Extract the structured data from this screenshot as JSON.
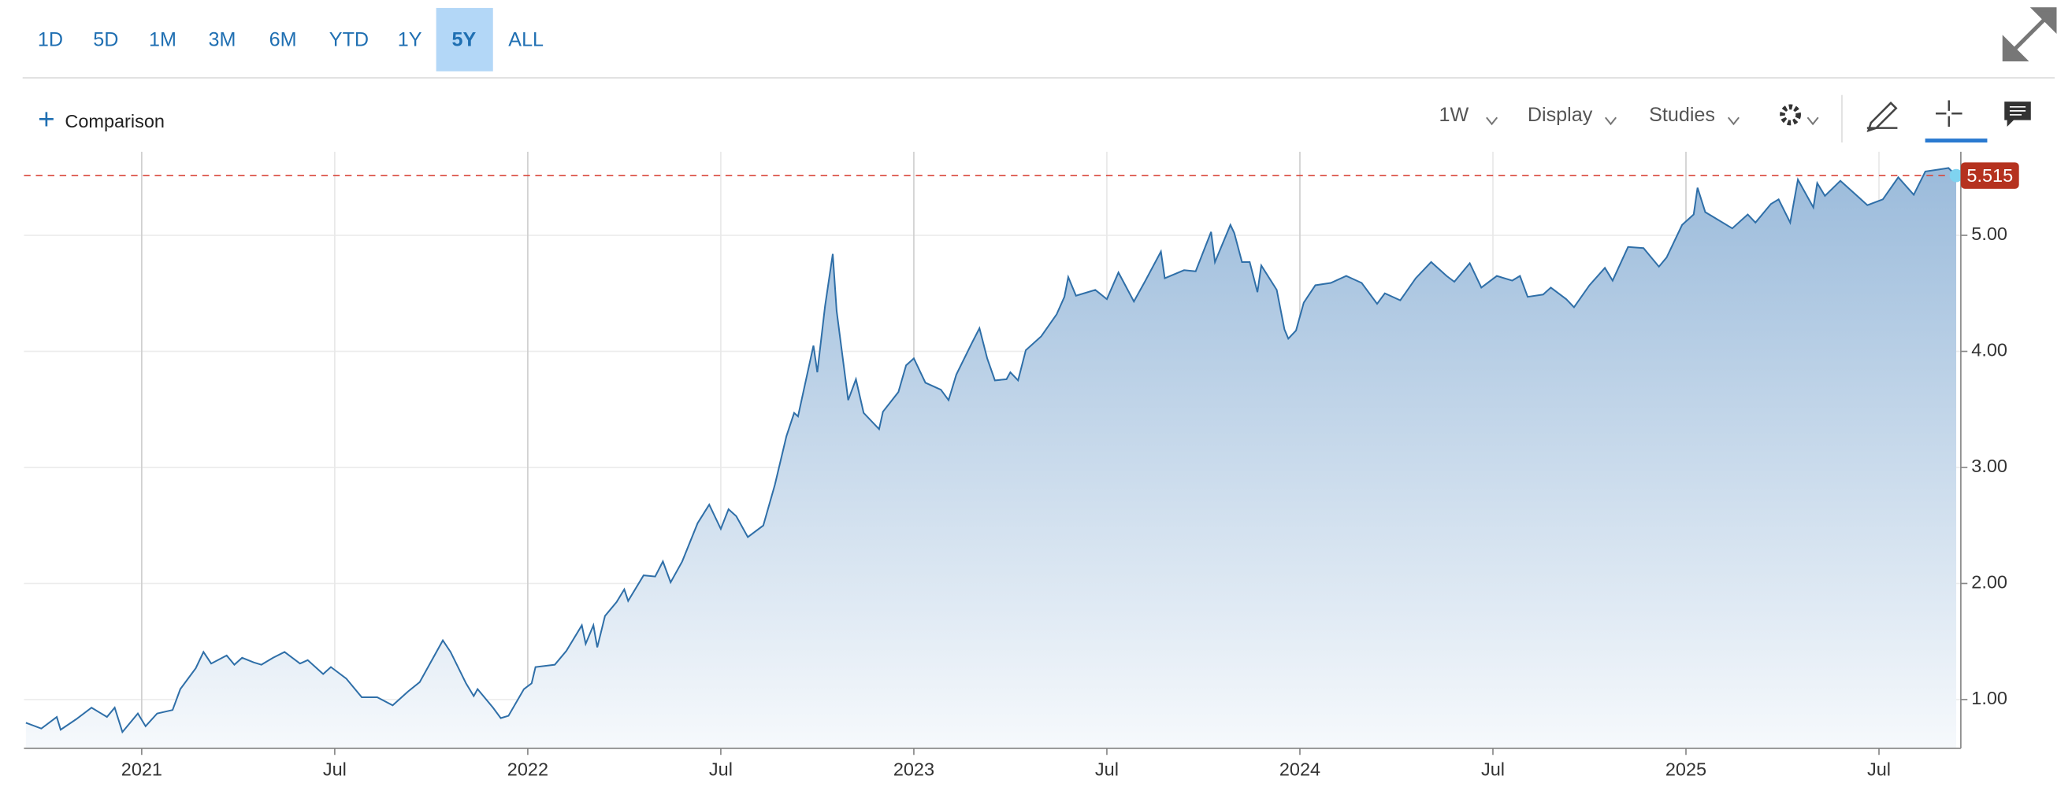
{
  "toolbar": {
    "ranges": [
      "1D",
      "5D",
      "1M",
      "3M",
      "6M",
      "YTD",
      "1Y",
      "5Y",
      "ALL"
    ],
    "selected_index": 7,
    "comparison": "Comparison",
    "interval": "1W",
    "display": "Display",
    "studies": "Studies"
  },
  "chart_data": {
    "type": "area",
    "grid": true,
    "x": [
      2020.7,
      2020.74,
      2020.78,
      2020.79,
      2020.83,
      2020.87,
      2020.91,
      2020.93,
      2020.95,
      2020.99,
      2021.01,
      2021.04,
      2021.08,
      2021.1,
      2021.14,
      2021.16,
      2021.18,
      2021.22,
      2021.24,
      2021.26,
      2021.29,
      2021.31,
      2021.34,
      2021.37,
      2021.41,
      2021.43,
      2021.47,
      2021.49,
      2021.53,
      2021.57,
      2021.61,
      2021.65,
      2021.69,
      2021.72,
      2021.74,
      2021.78,
      2021.8,
      2021.84,
      2021.86,
      2021.87,
      2021.91,
      2021.93,
      2021.95,
      2021.99,
      2022.01,
      2022.02,
      2022.07,
      2022.1,
      2022.14,
      2022.15,
      2022.17,
      2022.18,
      2022.2,
      2022.23,
      2022.25,
      2022.26,
      2022.3,
      2022.33,
      2022.35,
      2022.37,
      2022.4,
      2022.44,
      2022.47,
      2022.5,
      2022.52,
      2022.54,
      2022.57,
      2022.61,
      2022.64,
      2022.67,
      2022.69,
      2022.7,
      2022.74,
      2022.75,
      2022.77,
      2022.79,
      2022.8,
      2022.83,
      2022.85,
      2022.87,
      2022.91,
      2022.92,
      2022.96,
      2022.98,
      2023.0,
      2023.03,
      2023.07,
      2023.09,
      2023.11,
      2023.15,
      2023.17,
      2023.19,
      2023.21,
      2023.24,
      2023.25,
      2023.27,
      2023.29,
      2023.33,
      2023.37,
      2023.39,
      2023.4,
      2023.42,
      2023.47,
      2023.5,
      2023.53,
      2023.57,
      2023.6,
      2023.64,
      2023.65,
      2023.7,
      2023.73,
      2023.77,
      2023.78,
      2023.82,
      2023.83,
      2023.85,
      2023.87,
      2023.89,
      2023.9,
      2023.94,
      2023.96,
      2023.97,
      2023.99,
      2024.01,
      2024.04,
      2024.08,
      2024.12,
      2024.16,
      2024.2,
      2024.22,
      2024.26,
      2024.3,
      2024.34,
      2024.38,
      2024.4,
      2024.44,
      2024.47,
      2024.51,
      2024.55,
      2024.57,
      2024.59,
      2024.63,
      2024.65,
      2024.69,
      2024.71,
      2024.75,
      2024.79,
      2024.81,
      2024.85,
      2024.89,
      2024.93,
      2024.95,
      2024.99,
      2025.02,
      2025.03,
      2025.05,
      2025.08,
      2025.12,
      2025.16,
      2025.18,
      2025.22,
      2025.24,
      2025.27,
      2025.29,
      2025.33,
      2025.34,
      2025.36,
      2025.4,
      2025.44,
      2025.47,
      2025.51,
      2025.55,
      2025.59,
      2025.62,
      2025.66,
      2025.68,
      2025.7
    ],
    "series": [
      {
        "color": "#2f6fa8",
        "values": [
          0.8,
          0.75,
          0.85,
          0.74,
          0.83,
          0.93,
          0.85,
          0.93,
          0.72,
          0.88,
          0.77,
          0.88,
          0.91,
          1.09,
          1.27,
          1.41,
          1.31,
          1.38,
          1.3,
          1.36,
          1.32,
          1.3,
          1.36,
          1.41,
          1.31,
          1.34,
          1.22,
          1.28,
          1.18,
          1.02,
          1.02,
          0.95,
          1.07,
          1.15,
          1.27,
          1.51,
          1.41,
          1.14,
          1.03,
          1.09,
          0.93,
          0.84,
          0.86,
          1.09,
          1.14,
          1.28,
          1.3,
          1.42,
          1.64,
          1.48,
          1.64,
          1.45,
          1.72,
          1.84,
          1.95,
          1.85,
          2.07,
          2.06,
          2.19,
          2.01,
          2.19,
          2.52,
          2.68,
          2.47,
          2.64,
          2.58,
          2.4,
          2.5,
          2.85,
          3.27,
          3.47,
          3.44,
          4.05,
          3.82,
          4.39,
          4.84,
          4.35,
          3.58,
          3.76,
          3.47,
          3.33,
          3.48,
          3.65,
          3.88,
          3.94,
          3.73,
          3.67,
          3.58,
          3.8,
          4.07,
          4.2,
          3.94,
          3.75,
          3.76,
          3.82,
          3.75,
          4.01,
          4.13,
          4.32,
          4.47,
          4.64,
          4.48,
          4.53,
          4.45,
          4.68,
          4.43,
          4.61,
          4.86,
          4.63,
          4.7,
          4.69,
          5.03,
          4.77,
          5.09,
          5.02,
          4.77,
          4.77,
          4.51,
          4.74,
          4.53,
          4.19,
          4.11,
          4.18,
          4.42,
          4.57,
          4.59,
          4.65,
          4.59,
          4.41,
          4.5,
          4.44,
          4.63,
          4.77,
          4.65,
          4.6,
          4.76,
          4.55,
          4.65,
          4.61,
          4.65,
          4.47,
          4.49,
          4.55,
          4.45,
          4.38,
          4.57,
          4.72,
          4.61,
          4.9,
          4.89,
          4.73,
          4.81,
          5.09,
          5.18,
          5.41,
          5.2,
          5.14,
          5.06,
          5.18,
          5.11,
          5.27,
          5.31,
          5.11,
          5.48,
          5.24,
          5.45,
          5.34,
          5.47,
          5.35,
          5.26,
          5.31,
          5.5,
          5.35,
          5.55,
          5.57,
          5.58,
          5.515
        ]
      }
    ],
    "xlim": [
      2020.695,
      2025.712
    ],
    "xticks": [
      2021,
      {
        "value": 2021.5,
        "label": "Jul"
      },
      2022,
      {
        "value": 2022.5,
        "label": "Jul"
      },
      2023,
      {
        "value": 2023.5,
        "label": "Jul"
      },
      2024,
      {
        "value": 2024.5,
        "label": "Jul"
      },
      2025,
      {
        "value": 2025.5,
        "label": "Jul"
      }
    ],
    "ylim": [
      0.58,
      5.72
    ],
    "yticks": [
      {
        "value": 1,
        "label": "1.00"
      },
      {
        "value": 2,
        "label": "2.00"
      },
      {
        "value": 3,
        "label": "3.00"
      },
      {
        "value": 4,
        "label": "4.00"
      },
      {
        "value": 5,
        "label": "5.00"
      }
    ]
  }
}
